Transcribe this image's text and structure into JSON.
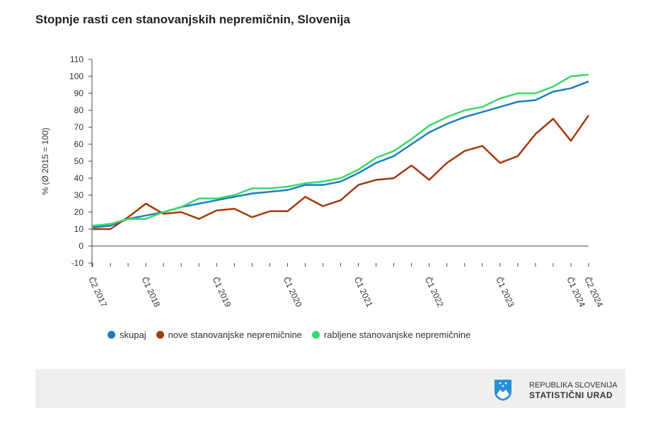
{
  "title": "Stopnje rasti cen stanovanjskih nepremičnin, Slovenija",
  "chart_data": {
    "type": "line",
    "ylabel": "% (Ø 2015 = 100)",
    "ylim": [
      -10,
      110
    ],
    "yticks": [
      -10,
      0,
      10,
      20,
      30,
      40,
      50,
      60,
      70,
      80,
      90,
      100,
      110
    ],
    "x_count": 29,
    "xtick_labels": [
      {
        "i": 0,
        "label": "Č2 2017"
      },
      {
        "i": 3,
        "label": "Č1 2018"
      },
      {
        "i": 7,
        "label": "Č1 2019"
      },
      {
        "i": 11,
        "label": "Č1 2020"
      },
      {
        "i": 15,
        "label": "Č1 2021"
      },
      {
        "i": 19,
        "label": "Č1 2022"
      },
      {
        "i": 23,
        "label": "Č1 2023"
      },
      {
        "i": 27,
        "label": "Č1 2024"
      },
      {
        "i": 28,
        "label": "Č2 2024"
      }
    ],
    "series": [
      {
        "name": "skupaj",
        "color": "#1a7fc1",
        "values": [
          11,
          12,
          16,
          18,
          20,
          23,
          25,
          27,
          29,
          31,
          32,
          33,
          36,
          36,
          38,
          43,
          49,
          53,
          60,
          67,
          72,
          76,
          79,
          82,
          85,
          86,
          91,
          93,
          97
        ]
      },
      {
        "name": "nove stanovanjske nepremičnine",
        "color": "#a33a0c",
        "values": [
          10,
          10,
          17,
          25,
          19,
          20,
          16,
          21,
          22,
          17,
          20.5,
          20.5,
          29,
          23.5,
          27,
          36,
          39,
          40,
          47.5,
          39,
          49,
          56,
          59,
          49,
          53,
          66,
          75,
          62,
          77
        ]
      },
      {
        "name": "rabljene stanovanjske nepremičnine",
        "color": "#3dd66b",
        "values": [
          12,
          13,
          16,
          16,
          20,
          23,
          28,
          28,
          30,
          34,
          34,
          35,
          37,
          38,
          40,
          45,
          52,
          56,
          63,
          71,
          76,
          80,
          82,
          87,
          90,
          90,
          94,
          100,
          101
        ]
      }
    ],
    "legend": "bottom"
  },
  "footer": {
    "line1": "REPUBLIKA SLOVENIJA",
    "line2": "STATISTIČNI URAD"
  }
}
